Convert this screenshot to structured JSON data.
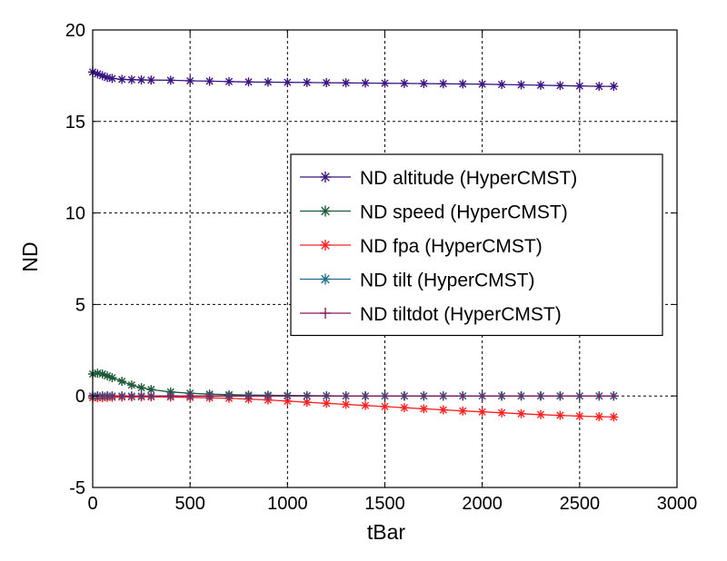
{
  "chart_data": {
    "type": "line",
    "title": "",
    "xlabel": "tBar",
    "ylabel": "ND",
    "xlim": [
      0,
      3000
    ],
    "ylim": [
      -5,
      20
    ],
    "x_ticks": [
      0,
      500,
      1000,
      1500,
      2000,
      2500,
      3000
    ],
    "y_ticks": [
      -5,
      0,
      5,
      10,
      15,
      20
    ],
    "grid": true,
    "legend_position": "center-right",
    "x": [
      0,
      25,
      50,
      75,
      100,
      150,
      200,
      250,
      300,
      400,
      500,
      600,
      700,
      800,
      900,
      1000,
      1100,
      1200,
      1300,
      1400,
      1500,
      1600,
      1700,
      1800,
      1900,
      2000,
      2100,
      2200,
      2300,
      2400,
      2500,
      2600,
      2675
    ],
    "series": [
      {
        "name": "ND altitude (HyperCMST)",
        "color": "#3b1580",
        "marker": "asterisk",
        "values": [
          17.7,
          17.6,
          17.5,
          17.4,
          17.35,
          17.3,
          17.28,
          17.27,
          17.26,
          17.25,
          17.22,
          17.2,
          17.18,
          17.16,
          17.15,
          17.14,
          17.13,
          17.12,
          17.11,
          17.1,
          17.09,
          17.08,
          17.07,
          17.06,
          17.05,
          17.04,
          17.02,
          17.0,
          16.98,
          16.96,
          16.94,
          16.92,
          16.92
        ]
      },
      {
        "name": "ND speed (HyperCMST)",
        "color": "#1e5a38",
        "marker": "asterisk",
        "values": [
          1.2,
          1.25,
          1.2,
          1.1,
          1.0,
          0.8,
          0.6,
          0.45,
          0.35,
          0.22,
          0.15,
          0.1,
          0.07,
          0.05,
          0.04,
          0.03,
          0.02,
          0.01,
          0.0,
          0.0,
          0.0,
          0.0,
          0.0,
          0.0,
          0.0,
          0.0,
          0.0,
          0.0,
          0.0,
          0.0,
          0.0,
          0.0,
          0.0
        ]
      },
      {
        "name": "ND fpa (HyperCMST)",
        "color": "#ff2020",
        "marker": "asterisk",
        "values": [
          -0.1,
          -0.1,
          -0.09,
          -0.08,
          -0.07,
          -0.06,
          -0.05,
          -0.05,
          -0.05,
          -0.06,
          -0.08,
          -0.1,
          -0.13,
          -0.17,
          -0.22,
          -0.28,
          -0.34,
          -0.4,
          -0.46,
          -0.52,
          -0.58,
          -0.64,
          -0.7,
          -0.76,
          -0.82,
          -0.87,
          -0.92,
          -0.97,
          -1.02,
          -1.06,
          -1.1,
          -1.13,
          -1.15
        ]
      },
      {
        "name": "ND tilt (HyperCMST)",
        "color": "#1f6d8e",
        "marker": "asterisk",
        "values": [
          0.0,
          0.0,
          0.0,
          0.0,
          0.0,
          0.0,
          0.0,
          0.0,
          0.0,
          0.0,
          0.0,
          0.0,
          0.0,
          0.0,
          0.0,
          0.0,
          0.0,
          0.0,
          0.0,
          0.0,
          0.0,
          0.0,
          0.0,
          0.0,
          0.0,
          0.0,
          0.0,
          0.0,
          0.0,
          0.0,
          0.0,
          0.0,
          0.0
        ]
      },
      {
        "name": "ND tiltdot (HyperCMST)",
        "color": "#8a1a62",
        "marker": "plus",
        "values": [
          0.0,
          0.0,
          0.0,
          0.0,
          0.0,
          0.0,
          0.0,
          0.0,
          0.0,
          0.0,
          0.0,
          0.0,
          0.0,
          0.0,
          0.0,
          0.0,
          0.0,
          0.0,
          0.0,
          0.0,
          0.0,
          0.0,
          0.0,
          0.0,
          0.0,
          0.0,
          0.0,
          0.0,
          0.0,
          0.0,
          0.0,
          0.0,
          0.0
        ]
      }
    ]
  }
}
